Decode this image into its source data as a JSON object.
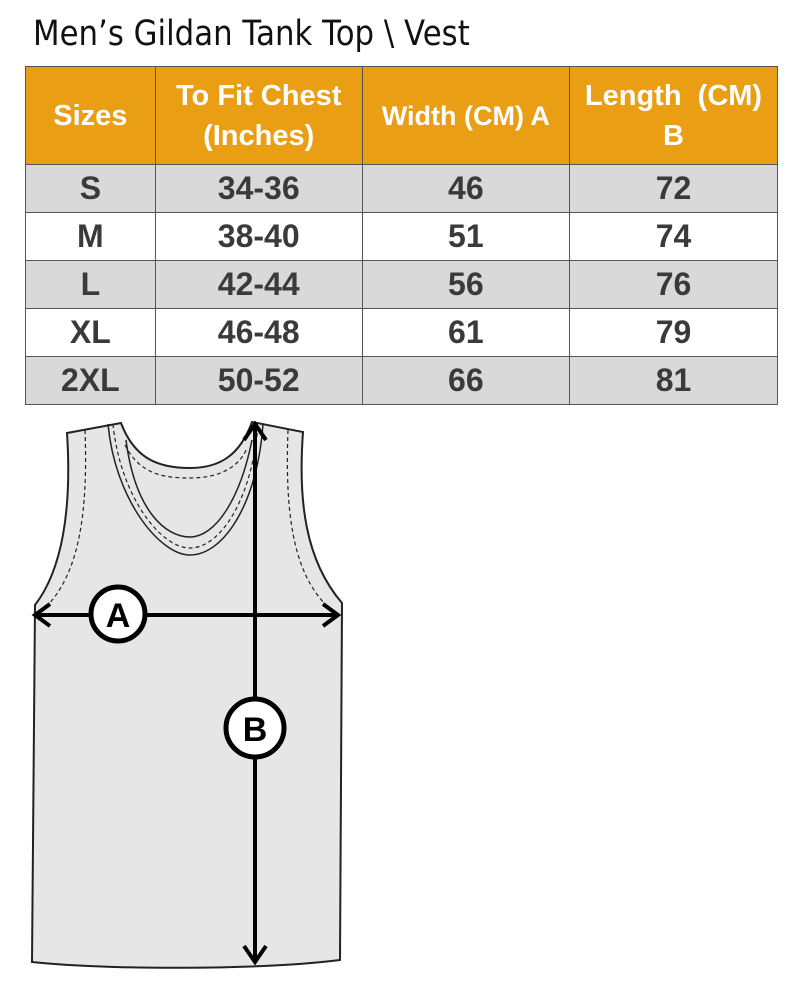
{
  "title": "Men’s Gildan Tank Top \\ Vest",
  "table": {
    "headers": [
      "Sizes",
      "To Fit Chest (Inches)",
      "Width (CM) A",
      "Length  (CM) B"
    ],
    "rows": [
      [
        "S",
        "34-36",
        "46",
        "72"
      ],
      [
        "M",
        "38-40",
        "51",
        "74"
      ],
      [
        "L",
        "42-44",
        "56",
        "76"
      ],
      [
        "XL",
        "46-48",
        "61",
        "79"
      ],
      [
        "2XL",
        "50-52",
        "66",
        "81"
      ]
    ]
  },
  "diagram": {
    "label_a": "A",
    "label_b": "B"
  },
  "colors": {
    "header": "#E99E14",
    "row_alt": "#d9d9d9",
    "text": "#3a3a3a"
  }
}
